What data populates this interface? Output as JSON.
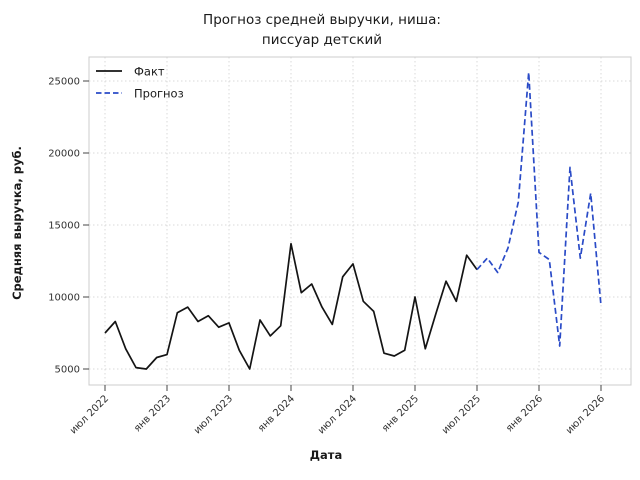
{
  "chart_data": {
    "type": "line",
    "title": "Прогноз средней выручки, ниша: писсуар детский",
    "title_lines": [
      "Прогноз средней выручки, ниша:",
      "писсуар детский"
    ],
    "xlabel": "Дата",
    "ylabel": "Средняя выручка, руб.",
    "y_ticks": [
      5000,
      10000,
      15000,
      20000,
      25000
    ],
    "y_range": [
      3900,
      26700
    ],
    "x_tick_labels": [
      "июл 2022",
      "янв 2023",
      "июл 2023",
      "янв 2024",
      "июл 2024",
      "янв 2025",
      "июл 2025",
      "янв 2026",
      "июл 2026"
    ],
    "x_tick_months": [
      0,
      6,
      12,
      18,
      24,
      30,
      36,
      42,
      48
    ],
    "grid": "both-dotted-lightgray",
    "legend_position": "upper-left",
    "series": [
      {
        "name": "Факт",
        "style": "solid",
        "color": "#141414",
        "start_month": 0,
        "start_label": "июл 2022",
        "end_label": "июл 2025",
        "values": [
          7500,
          8300,
          6400,
          5100,
          5000,
          5800,
          6000,
          8900,
          9300,
          8300,
          8700,
          7900,
          8200,
          6300,
          5000,
          8400,
          7300,
          8000,
          13700,
          10300,
          10900,
          9300,
          8100,
          11400,
          12300,
          9700,
          9000,
          6100,
          5900,
          6300,
          10000,
          6400,
          8800,
          11100,
          9700,
          12900,
          11900
        ]
      },
      {
        "name": "Прогноз",
        "style": "dashed",
        "color": "#2a4bc7",
        "start_month": 36,
        "start_label": "июл 2025",
        "end_label": "июл 2026",
        "values": [
          11900,
          12700,
          11700,
          13400,
          16600,
          25600,
          13100,
          12600,
          6600,
          19000,
          12700,
          17200,
          9400
        ]
      }
    ]
  }
}
